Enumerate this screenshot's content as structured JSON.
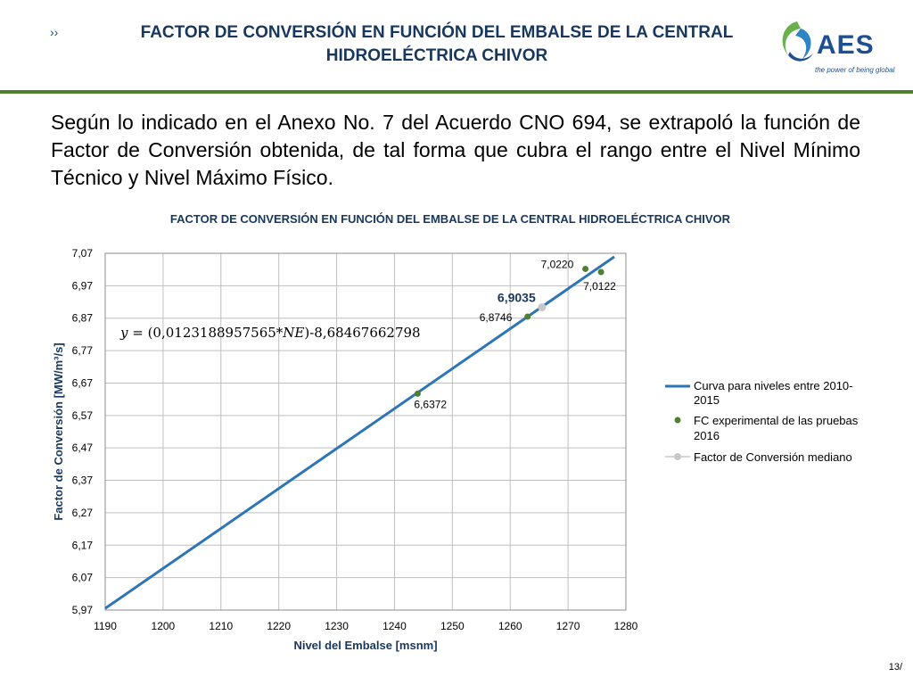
{
  "header": {
    "chevron": "››",
    "title_line1": "FACTOR DE CONVERSIÓN EN FUNCIÓN DEL EMBALSE DE LA CENTRAL",
    "title_line2": "HIDROELÉCTRICA CHIVOR"
  },
  "logo": {
    "name": "AES",
    "tagline": "the power of being global"
  },
  "body_text": "Según lo indicado en el Anexo No. 7 del Acuerdo CNO  694, se extrapoló la función de Factor de Conversión obtenida, de tal forma que cubra el rango entre el Nivel Mínimo Técnico y Nivel Máximo Físico.",
  "footer": {
    "page": "13/"
  },
  "colors": {
    "title": "#17375e",
    "line": "#2e75b6",
    "points": "#4f7f2f",
    "median": "#c8c8c8",
    "rule": "#4f7f2f"
  },
  "chart_data": {
    "type": "line",
    "title": "FACTOR DE CONVERSIÓN EN FUNCIÓN DEL EMBALSE DE LA CENTRAL HIDROELÉCTRICA CHIVOR",
    "xlabel": "Nivel del Embalse [msnm]",
    "ylabel": "Factor de Conversión [MW/m³/s]",
    "xlim": [
      1190,
      1280
    ],
    "ylim": [
      5.97,
      7.07
    ],
    "x_ticks": [
      "1190",
      "1200",
      "1210",
      "1220",
      "1230",
      "1240",
      "1250",
      "1260",
      "1270",
      "1280"
    ],
    "y_ticks": [
      "5,97",
      "6,07",
      "6,17",
      "6,27",
      "6,37",
      "6,47",
      "6,57",
      "6,67",
      "6,77",
      "6,87",
      "6,97",
      "7,07"
    ],
    "grid": true,
    "equation": "𝑦 = (0,0123188957565*𝑁𝐸)-8,68467662798",
    "series": [
      {
        "name": "Curva para niveles entre 2010-2015",
        "legend_line1": "Curva para niveles entre 2010-",
        "legend_line2": "2015",
        "kind": "line",
        "x": [
          1190,
          1278
        ],
        "y": [
          5.9752,
          7.0593
        ]
      },
      {
        "name": "FC experimental de las pruebas 2016",
        "legend_line1": "FC experimental de las pruebas",
        "legend_line2": "2016",
        "kind": "scatter",
        "points": [
          {
            "x": 1244,
            "y": 6.6372,
            "label": "6,6372"
          },
          {
            "x": 1263,
            "y": 6.8746,
            "label": "6,8746"
          },
          {
            "x": 1273,
            "y": 7.022,
            "label": "7,0220"
          },
          {
            "x": 1275.7,
            "y": 7.0122,
            "label": "7,0122"
          }
        ]
      },
      {
        "name": "Factor de Conversión mediano",
        "legend_line1": "Factor de Conversión mediano",
        "kind": "marker",
        "points": [
          {
            "x": 1265.5,
            "y": 6.9035,
            "label": "6,9035"
          }
        ]
      }
    ]
  }
}
